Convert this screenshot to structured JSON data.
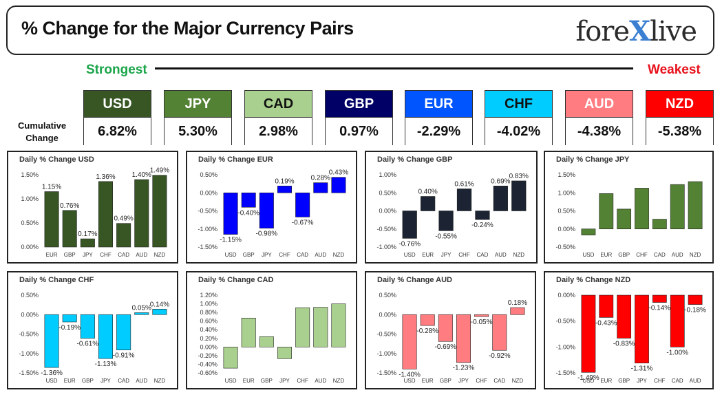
{
  "header": {
    "title": "% Change for the Major Currency Pairs",
    "logo_left": "fore",
    "logo_x": "X",
    "logo_right": "live"
  },
  "ranking": {
    "strongest_label": "Strongest",
    "weakest_label": "Weakest",
    "cumulative_label_1": "Cumulative",
    "cumulative_label_2": "Change",
    "currencies": [
      {
        "name": "USD",
        "value": "6.82%",
        "color": "#375623",
        "text": "#ffffff"
      },
      {
        "name": "JPY",
        "value": "5.30%",
        "color": "#548235",
        "text": "#ffffff"
      },
      {
        "name": "CAD",
        "value": "2.98%",
        "color": "#a9d08e",
        "text": "#111111"
      },
      {
        "name": "GBP",
        "value": "0.97%",
        "color": "#000066",
        "text": "#ffffff"
      },
      {
        "name": "EUR",
        "value": "-2.29%",
        "color": "#0055ff",
        "text": "#ffffff"
      },
      {
        "name": "CHF",
        "value": "-4.02%",
        "color": "#00ccff",
        "text": "#111111"
      },
      {
        "name": "AUD",
        "value": "-4.38%",
        "color": "#ff7c80",
        "text": "#ffffff"
      },
      {
        "name": "NZD",
        "value": "-5.38%",
        "color": "#ff0000",
        "text": "#ffffff"
      }
    ]
  },
  "chart_data": [
    {
      "type": "bar",
      "title": "Daily % Change USD",
      "color": "#375623",
      "categories": [
        "EUR",
        "GBP",
        "JPY",
        "CHF",
        "CAD",
        "AUD",
        "NZD"
      ],
      "values": [
        1.15,
        0.76,
        0.17,
        1.36,
        0.49,
        1.4,
        1.49
      ],
      "labels": [
        "1.15%",
        "0.76%",
        "0.17%",
        "1.36%",
        "0.49%",
        "1.40%",
        "1.49%"
      ],
      "yticks": [
        0,
        0.5,
        1.0,
        1.5
      ],
      "ytick_labels": [
        "0.00%",
        "0.50%",
        "1.00%",
        "1.50%"
      ],
      "ylim": [
        0,
        1.5
      ]
    },
    {
      "type": "bar",
      "title": "Daily % Change EUR",
      "color": "#0000ff",
      "categories": [
        "USD",
        "GBP",
        "JPY",
        "CHF",
        "CAD",
        "AUD",
        "NZD"
      ],
      "values": [
        -1.15,
        -0.4,
        -0.98,
        0.19,
        -0.67,
        0.28,
        0.43
      ],
      "labels": [
        "-1.15%",
        "-0.40%",
        "-0.98%",
        "0.19%",
        "-0.67%",
        "0.28%",
        "0.43%"
      ],
      "yticks": [
        0.5,
        0,
        -0.5,
        -1.0,
        -1.5
      ],
      "ytick_labels": [
        "0.50%",
        "0.00%",
        "-0.50%",
        "-1.00%",
        "-1.50%"
      ],
      "ylim": [
        -1.5,
        0.5
      ]
    },
    {
      "type": "bar",
      "title": "Daily % Change GBP",
      "color": "#1c2433",
      "categories": [
        "USD",
        "EUR",
        "JPY",
        "CHF",
        "CAD",
        "AUD",
        "NZD"
      ],
      "values": [
        -0.76,
        0.4,
        -0.55,
        0.61,
        -0.24,
        0.69,
        0.83
      ],
      "labels": [
        "-0.76%",
        "0.40%",
        "-0.55%",
        "0.61%",
        "-0.24%",
        "0.69%",
        "0.83%"
      ],
      "yticks": [
        1.0,
        0.5,
        0,
        -0.5,
        -1.0
      ],
      "ytick_labels": [
        "1.00%",
        "0.50%",
        "0.00%",
        "-0.50%",
        "-1.00%"
      ],
      "ylim": [
        -1.0,
        1.0
      ]
    },
    {
      "type": "bar",
      "title": "Daily % Change JPY",
      "color": "#548235",
      "categories": [
        "USD",
        "EUR",
        "GBP",
        "CHF",
        "CAD",
        "AUD",
        "NZD"
      ],
      "values": [
        -0.17,
        0.98,
        0.55,
        1.13,
        0.27,
        1.23,
        1.31
      ],
      "labels": [],
      "yticks": [
        1.5,
        1.0,
        0.5,
        0,
        -0.5
      ],
      "ytick_labels": [
        "1.50%",
        "1.00%",
        "0.50%",
        "0.00%",
        "-0.50%"
      ],
      "ylim": [
        -0.5,
        1.5
      ]
    },
    {
      "type": "bar",
      "title": "Daily % Change CHF",
      "color": "#00ccff",
      "categories": [
        "USD",
        "EUR",
        "GBP",
        "JPY",
        "CAD",
        "AUD",
        "NZD"
      ],
      "values": [
        -1.36,
        -0.19,
        -0.61,
        -1.13,
        -0.91,
        0.05,
        0.14
      ],
      "labels": [
        "-1.36%",
        "-0.19%",
        "-0.61%",
        "-1.13%",
        "-0.91%",
        "0.05%",
        "0.14%"
      ],
      "yticks": [
        0.5,
        0,
        -0.5,
        -1.0,
        -1.5
      ],
      "ytick_labels": [
        "0.50%",
        "0.00%",
        "-0.50%",
        "-1.00%",
        "-1.50%"
      ],
      "ylim": [
        -1.5,
        0.5
      ]
    },
    {
      "type": "bar",
      "title": "Daily % Change CAD",
      "color": "#a9d08e",
      "categories": [
        "USD",
        "EUR",
        "GBP",
        "JPY",
        "CHF",
        "AUD",
        "NZD"
      ],
      "values": [
        -0.49,
        0.67,
        0.24,
        -0.27,
        0.91,
        0.92,
        1.0
      ],
      "labels": [],
      "yticks": [
        1.2,
        1.0,
        0.8,
        0.6,
        0.4,
        0.2,
        0,
        -0.2,
        -0.4,
        -0.6
      ],
      "ytick_labels": [
        "1.20%",
        "1.00%",
        "0.80%",
        "0.60%",
        "0.40%",
        "0.20%",
        "0.00%",
        "-0.20%",
        "-0.40%",
        "-0.60%"
      ],
      "ylim": [
        -0.6,
        1.2
      ]
    },
    {
      "type": "bar",
      "title": "Daily % Change AUD",
      "color": "#ff7c80",
      "categories": [
        "USD",
        "EUR",
        "GBP",
        "JPY",
        "CHF",
        "CAD",
        "NZD"
      ],
      "values": [
        -1.4,
        -0.28,
        -0.69,
        -1.23,
        -0.05,
        -0.92,
        0.18
      ],
      "labels": [
        "-1.40%",
        "-0.28%",
        "-0.69%",
        "-1.23%",
        "-0.05%",
        "-0.92%",
        "0.18%"
      ],
      "yticks": [
        0.5,
        0,
        -0.5,
        -1.0,
        -1.5
      ],
      "ytick_labels": [
        "0.50%",
        "0.00%",
        "-0.50%",
        "-1.00%",
        "-1.50%"
      ],
      "ylim": [
        -1.5,
        0.5
      ]
    },
    {
      "type": "bar",
      "title": "Daily % Change NZD",
      "color": "#ff0000",
      "categories": [
        "USD",
        "EUR",
        "GBP",
        "JPY",
        "CHF",
        "CAD",
        "AUD"
      ],
      "values": [
        -1.49,
        -0.43,
        -0.83,
        -1.31,
        -0.14,
        -1.0,
        -0.18
      ],
      "labels": [
        "-1.49%",
        "-0.43%",
        "-0.83%",
        "-1.31%",
        "-0.14%",
        "-1.00%",
        "-0.18%"
      ],
      "yticks": [
        0,
        -0.5,
        -1.0,
        -1.5
      ],
      "ytick_labels": [
        "0.00%",
        "-0.50%",
        "-1.00%",
        "-1.50%"
      ],
      "ylim": [
        -1.5,
        0
      ]
    }
  ]
}
